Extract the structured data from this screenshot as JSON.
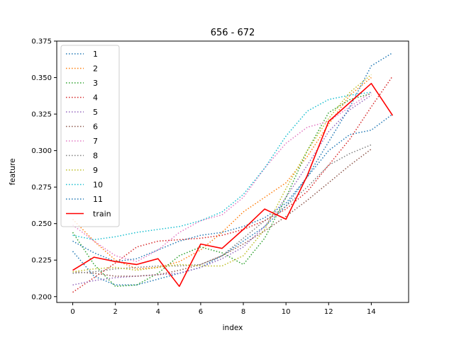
{
  "chart_data": {
    "type": "line",
    "title": "656 - 672",
    "xlabel": "index",
    "ylabel": "feature",
    "xlim": [
      -0.75,
      15.75
    ],
    "ylim": [
      0.196,
      0.375
    ],
    "xticks": [
      0,
      2,
      4,
      6,
      8,
      10,
      12,
      14
    ],
    "yticks": [
      0.2,
      0.225,
      0.25,
      0.275,
      0.3,
      0.325,
      0.35,
      0.375
    ],
    "ytick_labels": [
      "0.200",
      "0.225",
      "0.250",
      "0.275",
      "0.300",
      "0.325",
      "0.350",
      "0.375"
    ],
    "grid": false,
    "legend_position": "upper left",
    "series": [
      {
        "name": "1",
        "color": "#1f77b4",
        "style": "dotted",
        "x": [
          0,
          1,
          2,
          3,
          4,
          5,
          6,
          7,
          8,
          9,
          10,
          11,
          12,
          13,
          14,
          15
        ],
        "y": [
          0.231,
          0.214,
          0.208,
          0.208,
          0.212,
          0.216,
          0.22,
          0.228,
          0.238,
          0.248,
          0.262,
          0.282,
          0.3,
          0.311,
          0.314,
          0.325
        ]
      },
      {
        "name": "2",
        "color": "#ff7f0e",
        "style": "dotted",
        "x": [
          0,
          1,
          2,
          3,
          4,
          5,
          6,
          7,
          8,
          9,
          10,
          11,
          12,
          13,
          14
        ],
        "y": [
          0.253,
          0.238,
          0.225,
          0.219,
          0.22,
          0.224,
          0.232,
          0.244,
          0.258,
          0.268,
          0.278,
          0.296,
          0.318,
          0.338,
          0.35
        ]
      },
      {
        "name": "3",
        "color": "#2ca02c",
        "style": "dotted",
        "x": [
          0,
          1,
          2,
          3,
          4,
          5,
          6,
          7,
          8,
          9,
          10,
          11,
          12,
          13,
          14
        ],
        "y": [
          0.244,
          0.222,
          0.207,
          0.208,
          0.216,
          0.228,
          0.234,
          0.23,
          0.222,
          0.24,
          0.268,
          0.3,
          0.326,
          0.335,
          0.339
        ]
      },
      {
        "name": "4",
        "color": "#d62728",
        "style": "dotted",
        "x": [
          0,
          1,
          2,
          3,
          4,
          5,
          6,
          7,
          8,
          9,
          10,
          11,
          12,
          13,
          14,
          15
        ],
        "y": [
          0.203,
          0.213,
          0.223,
          0.234,
          0.238,
          0.239,
          0.24,
          0.242,
          0.246,
          0.252,
          0.26,
          0.272,
          0.29,
          0.308,
          0.33,
          0.351
        ]
      },
      {
        "name": "5",
        "color": "#9467bd",
        "style": "dotted",
        "x": [
          0,
          1,
          2,
          3,
          4,
          5,
          6,
          7,
          8,
          9,
          10,
          11,
          12,
          13,
          14
        ],
        "y": [
          0.208,
          0.211,
          0.213,
          0.214,
          0.215,
          0.216,
          0.22,
          0.226,
          0.234,
          0.248,
          0.268,
          0.29,
          0.313,
          0.328,
          0.338
        ]
      },
      {
        "name": "6",
        "color": "#8c564b",
        "style": "dotted",
        "x": [
          0,
          1,
          2,
          3,
          4,
          5,
          6,
          7,
          8,
          9,
          10,
          11,
          12,
          13,
          14
        ],
        "y": [
          0.217,
          0.216,
          0.214,
          0.214,
          0.215,
          0.218,
          0.222,
          0.228,
          0.236,
          0.245,
          0.255,
          0.266,
          0.278,
          0.29,
          0.301
        ]
      },
      {
        "name": "7",
        "color": "#e377c2",
        "style": "dotted",
        "x": [
          0,
          1,
          2,
          3,
          4,
          5,
          6,
          7,
          8,
          9,
          10,
          11,
          12,
          13,
          14
        ],
        "y": [
          0.249,
          0.238,
          0.228,
          0.224,
          0.232,
          0.244,
          0.252,
          0.256,
          0.268,
          0.288,
          0.305,
          0.316,
          0.32,
          0.33,
          0.34
        ]
      },
      {
        "name": "8",
        "color": "#7f7f7f",
        "style": "dotted",
        "x": [
          0,
          1,
          2,
          3,
          4,
          5,
          6,
          7,
          8,
          9,
          10,
          11,
          12,
          13,
          14
        ],
        "y": [
          0.216,
          0.217,
          0.219,
          0.22,
          0.221,
          0.221,
          0.222,
          0.228,
          0.24,
          0.252,
          0.262,
          0.275,
          0.29,
          0.298,
          0.304
        ]
      },
      {
        "name": "9",
        "color": "#bcbd22",
        "style": "dotted",
        "x": [
          0,
          1,
          2,
          3,
          4,
          5,
          6,
          7,
          8,
          9,
          10,
          11,
          12,
          13,
          14
        ],
        "y": [
          0.217,
          0.219,
          0.22,
          0.218,
          0.22,
          0.222,
          0.221,
          0.221,
          0.228,
          0.246,
          0.274,
          0.3,
          0.322,
          0.34,
          0.352
        ]
      },
      {
        "name": "10",
        "color": "#17becf",
        "style": "dotted",
        "x": [
          0,
          1,
          2,
          3,
          4,
          5,
          6,
          7,
          8,
          9,
          10,
          11,
          12,
          13,
          14
        ],
        "y": [
          0.242,
          0.239,
          0.241,
          0.244,
          0.246,
          0.248,
          0.252,
          0.258,
          0.27,
          0.288,
          0.31,
          0.327,
          0.335,
          0.338,
          0.34
        ]
      },
      {
        "name": "11",
        "color": "#1f77b4",
        "style": "dotted",
        "x": [
          0,
          1,
          2,
          3,
          4,
          5,
          6,
          7,
          8,
          9,
          10,
          11,
          12,
          13,
          14,
          15
        ],
        "y": [
          0.238,
          0.23,
          0.224,
          0.226,
          0.232,
          0.238,
          0.242,
          0.244,
          0.248,
          0.254,
          0.264,
          0.282,
          0.306,
          0.33,
          0.358,
          0.367
        ]
      },
      {
        "name": "train",
        "color": "#ff0000",
        "style": "solid",
        "x": [
          0,
          1,
          2,
          3,
          4,
          5,
          6,
          7,
          8,
          9,
          10,
          11,
          12,
          13,
          14,
          15
        ],
        "y": [
          0.218,
          0.227,
          0.224,
          0.222,
          0.226,
          0.207,
          0.236,
          0.233,
          0.246,
          0.26,
          0.253,
          0.283,
          0.32,
          0.333,
          0.346,
          0.324
        ]
      }
    ]
  }
}
